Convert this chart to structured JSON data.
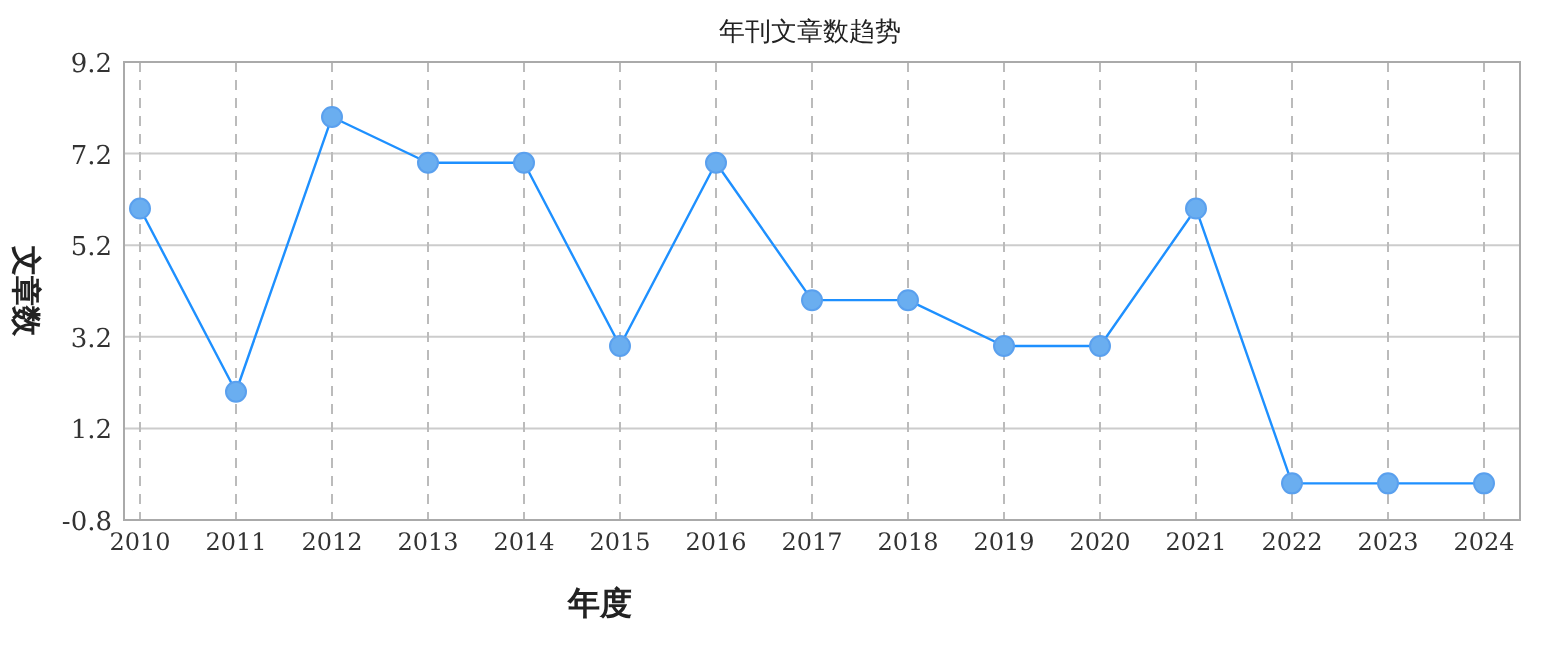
{
  "chart_data": {
    "type": "line",
    "title": "年刊文章数趋势",
    "xlabel": "年度",
    "ylabel": "文章数",
    "categories": [
      "2010",
      "2011",
      "2012",
      "2013",
      "2014",
      "2015",
      "2016",
      "2017",
      "2018",
      "2019",
      "2020",
      "2021",
      "2022",
      "2023",
      "2024"
    ],
    "values": [
      6,
      2,
      8,
      7,
      7,
      3,
      7,
      4,
      4,
      3,
      3,
      6,
      0,
      0,
      0
    ],
    "color": "#1e90ff",
    "ylim": [
      -0.8,
      9.2
    ],
    "yticks": [
      -0.8,
      1.2,
      3.2,
      5.2,
      7.2,
      9.2
    ],
    "grid": true,
    "marker": "circle"
  }
}
